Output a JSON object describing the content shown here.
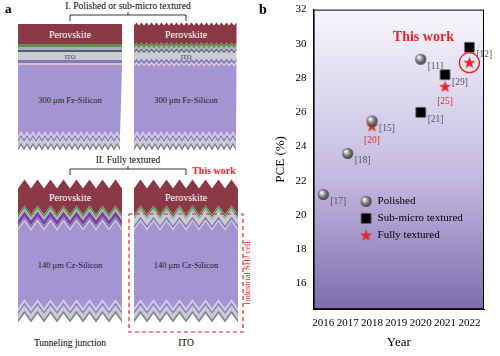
{
  "panel_a": {
    "panel_label": "a",
    "sections": [
      {
        "title": "I. Polished or sub-micro textured",
        "stacks": [
          {
            "top": "Perovskite",
            "middle": "ITO",
            "substrate": "300 μm Fz-Silicon"
          },
          {
            "top": "Perovskite",
            "middle": "ITO",
            "substrate": "300 μm Fz-Silicon"
          }
        ]
      },
      {
        "title": "II. Fully textured",
        "highlight": "This work",
        "stacks": [
          {
            "top": "Perovskite",
            "substrate": "140 μm Cz-Silicon",
            "caption": "Tunneling junction"
          },
          {
            "top": "Perovskite",
            "substrate": "140 μm Cz-Silicon",
            "caption": "ITO",
            "box_label": "Industrial SHJ cell"
          }
        ]
      }
    ]
  },
  "chart_data": {
    "type": "scatter",
    "panel_label": "b",
    "x_label": "Year",
    "y_label": "PCE (%)",
    "xlim": [
      2015.6,
      2022.6
    ],
    "xticks": [
      2016,
      2017,
      2018,
      2019,
      2020,
      2021,
      2022
    ],
    "ylim": [
      14.5,
      32
    ],
    "yticks": [
      16,
      18,
      20,
      22,
      24,
      26,
      28,
      30,
      32
    ],
    "grid": false,
    "legend": "center",
    "series": [
      {
        "name": "Polished",
        "color": "#808080",
        "marker": "circle",
        "x": [
          2016,
          2017,
          2018,
          2020
        ],
        "values": [
          21.2,
          23.6,
          25.5,
          29.1
        ],
        "point_labels": [
          "[17]",
          "[18]",
          "[15]",
          "[11]"
        ]
      },
      {
        "name": "Sub-micro textured",
        "color": "#000000",
        "marker": "square",
        "x": [
          2020,
          2021,
          2022
        ],
        "values": [
          26.0,
          28.2,
          29.8
        ],
        "point_labels": [
          "[21]",
          "[29]",
          "[12]"
        ]
      },
      {
        "name": "Fully textured",
        "color": "#e8262a",
        "marker": "star",
        "x": [
          2018,
          2021,
          2022
        ],
        "values": [
          25.2,
          27.5,
          28.9
        ],
        "point_labels": [
          "[20]",
          "[25]",
          null
        ]
      }
    ],
    "annotations": [
      {
        "text": "This work",
        "x": 2022,
        "y": 28.9
      }
    ]
  }
}
